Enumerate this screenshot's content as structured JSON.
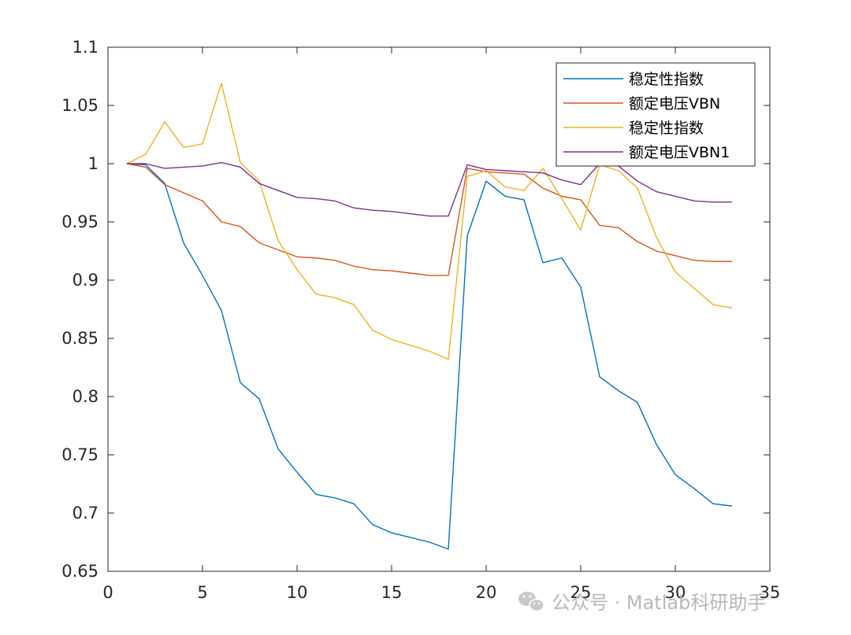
{
  "chart_data": {
    "type": "line",
    "title": "",
    "xlabel": "",
    "ylabel": "",
    "xlim": [
      0,
      35
    ],
    "ylim": [
      0.65,
      1.1
    ],
    "xticks": [
      0,
      5,
      10,
      15,
      20,
      25,
      30,
      35
    ],
    "xtick_labels": [
      "0",
      "5",
      "10",
      "15",
      "20",
      "25",
      "30",
      "35"
    ],
    "yticks": [
      0.65,
      0.7,
      0.75,
      0.8,
      0.85,
      0.9,
      0.95,
      1.0,
      1.05,
      1.1
    ],
    "ytick_labels": [
      "0.65",
      "0.7",
      "0.75",
      "0.8",
      "0.85",
      "0.9",
      "0.95",
      "1",
      "1.05",
      "1.1"
    ],
    "grid": false,
    "legend_position": "top-right",
    "x": [
      1,
      2,
      3,
      4,
      5,
      6,
      7,
      8,
      9,
      10,
      11,
      12,
      13,
      14,
      15,
      16,
      17,
      18,
      19,
      20,
      21,
      22,
      23,
      24,
      25,
      26,
      27,
      28,
      29,
      30,
      31,
      32,
      33
    ],
    "series": [
      {
        "name": "稳定性指数",
        "color": "#0072BD",
        "values": [
          1.0,
          0.999,
          0.983,
          0.932,
          0.904,
          0.874,
          0.812,
          0.798,
          0.755,
          0.735,
          0.716,
          0.713,
          0.708,
          0.69,
          0.683,
          0.679,
          0.675,
          0.669,
          0.938,
          0.985,
          0.972,
          0.969,
          0.915,
          0.919,
          0.894,
          0.817,
          0.805,
          0.795,
          0.759,
          0.733,
          0.721,
          0.708,
          0.706
        ]
      },
      {
        "name": "额定电压VBN",
        "color": "#D95319",
        "values": [
          1.0,
          0.997,
          0.982,
          0.975,
          0.968,
          0.95,
          0.946,
          0.932,
          0.926,
          0.92,
          0.919,
          0.917,
          0.912,
          0.909,
          0.908,
          0.906,
          0.904,
          0.904,
          0.996,
          0.993,
          0.992,
          0.991,
          0.979,
          0.972,
          0.969,
          0.947,
          0.945,
          0.933,
          0.925,
          0.921,
          0.917,
          0.916,
          0.916
        ]
      },
      {
        "name": "稳定性指数",
        "color": "#EDB120",
        "values": [
          1.0,
          1.008,
          1.036,
          1.014,
          1.017,
          1.069,
          1.001,
          0.985,
          0.934,
          0.909,
          0.888,
          0.885,
          0.879,
          0.857,
          0.849,
          0.844,
          0.839,
          0.832,
          0.989,
          0.994,
          0.98,
          0.977,
          0.996,
          0.97,
          0.943,
          0.999,
          0.994,
          0.979,
          0.937,
          0.907,
          0.893,
          0.879,
          0.876
        ]
      },
      {
        "name": "额定电压VBN1",
        "color": "#7E2F8E",
        "values": [
          1.0,
          1.0,
          0.996,
          0.997,
          0.998,
          1.001,
          0.997,
          0.983,
          0.977,
          0.971,
          0.97,
          0.968,
          0.962,
          0.96,
          0.959,
          0.957,
          0.955,
          0.955,
          0.999,
          0.995,
          0.994,
          0.993,
          0.992,
          0.986,
          0.982,
          1.0,
          0.998,
          0.985,
          0.976,
          0.972,
          0.968,
          0.967,
          0.967
        ]
      }
    ]
  },
  "watermark": {
    "text": "公众号 · Matlab科研助手",
    "icon": "wechat-icon"
  }
}
